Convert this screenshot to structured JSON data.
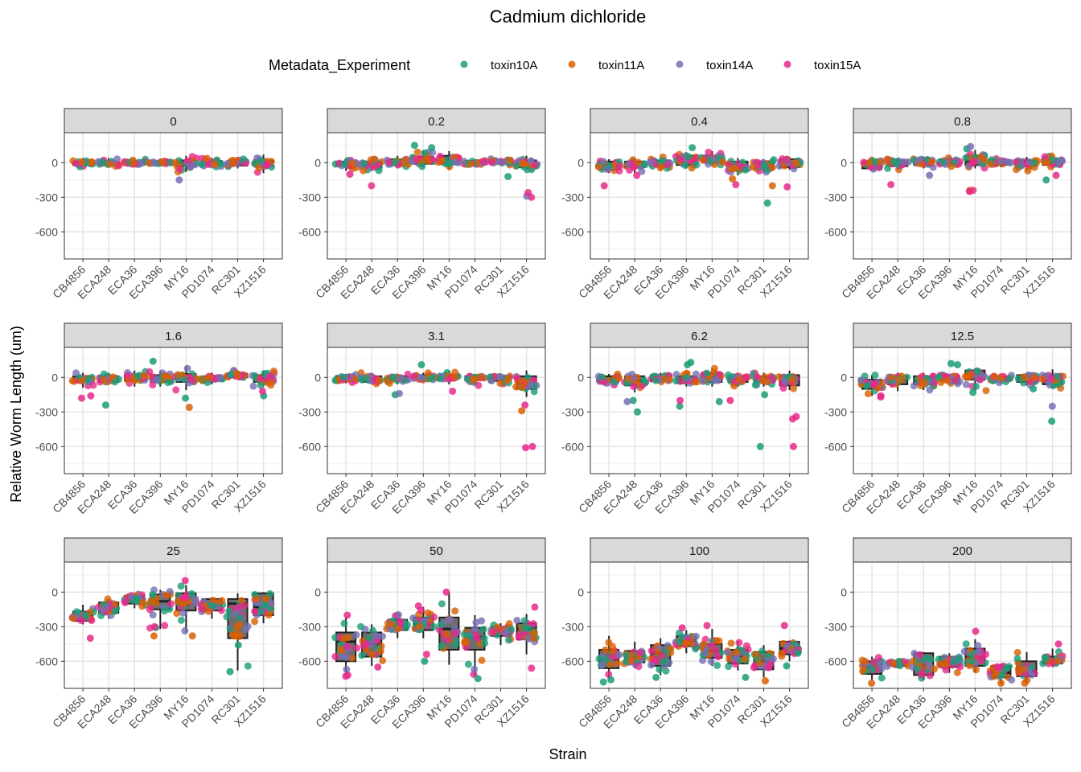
{
  "chart_data": {
    "type": "box",
    "title": "Cadmium dichloride",
    "xlabel": "Strain",
    "ylabel": "Relative Worm Length (um)",
    "ylim": [
      -835,
      260
    ],
    "yticks": [
      0,
      -300,
      -600
    ],
    "ytick_labels": [
      "0",
      "-300",
      "-600"
    ],
    "grid": true,
    "legend": {
      "title": "Metadata_Experiment",
      "position": "top",
      "entries": [
        {
          "name": "toxin10A",
          "color": "#1B9E77"
        },
        {
          "name": "toxin11A",
          "color": "#D95F02"
        },
        {
          "name": "toxin14A",
          "color": "#7570B3"
        },
        {
          "name": "toxin15A",
          "color": "#E7298A"
        }
      ]
    },
    "categories": [
      "CB4856",
      "ECA248",
      "ECA36",
      "ECA396",
      "MY16",
      "PD1074",
      "RC301",
      "XZ1516"
    ],
    "facets": [
      {
        "label": "0",
        "boxes": [
          [
            -20,
            10,
            0,
            -40,
            40
          ],
          [
            -20,
            10,
            0,
            -40,
            40
          ],
          [
            -20,
            10,
            0,
            -40,
            40
          ],
          [
            -5,
            5,
            0,
            -10,
            15
          ],
          [
            -30,
            20,
            0,
            -80,
            60
          ],
          [
            -20,
            15,
            0,
            -40,
            40
          ],
          [
            -25,
            15,
            0,
            -50,
            50
          ],
          [
            -30,
            20,
            0,
            -90,
            70
          ]
        ],
        "outliers": [
          [
            4,
            2,
            -150
          ]
        ]
      },
      {
        "label": "0.2",
        "boxes": [
          [
            -30,
            10,
            -10,
            -70,
            30
          ],
          [
            -40,
            10,
            -20,
            -70,
            30
          ],
          [
            -20,
            30,
            10,
            -50,
            60
          ],
          [
            -10,
            50,
            20,
            -40,
            100
          ],
          [
            -10,
            60,
            30,
            -60,
            100
          ],
          [
            -15,
            15,
            0,
            -40,
            30
          ],
          [
            -5,
            25,
            10,
            -20,
            40
          ],
          [
            -40,
            20,
            0,
            -60,
            60
          ]
        ],
        "outliers": [
          [
            0,
            3,
            -100
          ],
          [
            1,
            3,
            -200
          ],
          [
            3,
            0,
            150
          ],
          [
            3,
            0,
            130
          ],
          [
            6,
            0,
            -120
          ],
          [
            7,
            3,
            -300
          ],
          [
            7,
            2,
            -290
          ],
          [
            7,
            3,
            -260
          ]
        ]
      },
      {
        "label": "0.4",
        "boxes": [
          [
            -60,
            10,
            -20,
            -90,
            30
          ],
          [
            -40,
            10,
            -20,
            -90,
            40
          ],
          [
            -30,
            20,
            0,
            -60,
            50
          ],
          [
            -20,
            60,
            20,
            -50,
            90
          ],
          [
            0,
            60,
            30,
            -30,
            100
          ],
          [
            -70,
            10,
            -30,
            -110,
            40
          ],
          [
            -50,
            10,
            -20,
            -90,
            30
          ],
          [
            -40,
            30,
            0,
            -60,
            50
          ]
        ],
        "outliers": [
          [
            0,
            3,
            -200
          ],
          [
            1,
            3,
            -110
          ],
          [
            3,
            0,
            130
          ],
          [
            5,
            3,
            -190
          ],
          [
            5,
            1,
            -140
          ],
          [
            6,
            0,
            -350
          ],
          [
            6,
            1,
            -200
          ],
          [
            7,
            3,
            -210
          ]
        ]
      },
      {
        "label": "0.8",
        "boxes": [
          [
            -50,
            10,
            -20,
            -70,
            30
          ],
          [
            -30,
            20,
            0,
            -60,
            40
          ],
          [
            -20,
            30,
            0,
            -50,
            50
          ],
          [
            -20,
            30,
            10,
            -40,
            50
          ],
          [
            -20,
            60,
            10,
            -50,
            110
          ],
          [
            -20,
            20,
            0,
            -40,
            40
          ],
          [
            -30,
            20,
            0,
            -70,
            50
          ],
          [
            -20,
            30,
            10,
            -50,
            60
          ]
        ],
        "outliers": [
          [
            1,
            3,
            -190
          ],
          [
            2,
            2,
            -110
          ],
          [
            4,
            3,
            -240
          ],
          [
            4,
            1,
            -240
          ],
          [
            4,
            3,
            -250
          ],
          [
            4,
            0,
            120
          ],
          [
            4,
            2,
            140
          ],
          [
            6,
            1,
            -70
          ],
          [
            7,
            3,
            -110
          ],
          [
            7,
            0,
            -150
          ]
        ]
      },
      {
        "label": "1.6",
        "boxes": [
          [
            -40,
            10,
            -20,
            -90,
            40
          ],
          [
            -40,
            10,
            -10,
            -60,
            40
          ],
          [
            -30,
            20,
            0,
            -80,
            60
          ],
          [
            -40,
            20,
            -10,
            -80,
            60
          ],
          [
            -40,
            30,
            -10,
            -110,
            100
          ],
          [
            -30,
            10,
            -10,
            -60,
            40
          ],
          [
            0,
            30,
            10,
            -20,
            60
          ],
          [
            -40,
            20,
            -10,
            -80,
            60
          ]
        ],
        "outliers": [
          [
            0,
            3,
            -180
          ],
          [
            0,
            3,
            -160
          ],
          [
            1,
            0,
            -240
          ],
          [
            3,
            0,
            140
          ],
          [
            4,
            0,
            -180
          ],
          [
            4,
            1,
            -260
          ],
          [
            7,
            0,
            -160
          ],
          [
            7,
            3,
            -120
          ]
        ]
      },
      {
        "label": "3.1",
        "boxes": [
          [
            -30,
            10,
            -10,
            -50,
            30
          ],
          [
            -40,
            10,
            -20,
            -60,
            40
          ],
          [
            -30,
            10,
            -10,
            -60,
            30
          ],
          [
            -10,
            20,
            0,
            -40,
            40
          ],
          [
            -10,
            20,
            0,
            -60,
            60
          ],
          [
            -20,
            10,
            -10,
            -70,
            30
          ],
          [
            -30,
            10,
            -10,
            -60,
            30
          ],
          [
            -100,
            10,
            -50,
            -170,
            60
          ]
        ],
        "outliers": [
          [
            2,
            0,
            -150
          ],
          [
            2,
            2,
            -140
          ],
          [
            3,
            0,
            110
          ],
          [
            4,
            3,
            -120
          ],
          [
            7,
            3,
            -240
          ],
          [
            7,
            1,
            -290
          ],
          [
            7,
            3,
            -600
          ],
          [
            7,
            3,
            -610
          ]
        ]
      },
      {
        "label": "6.2",
        "boxes": [
          [
            -40,
            10,
            -20,
            -70,
            30
          ],
          [
            -70,
            10,
            -30,
            -130,
            30
          ],
          [
            -30,
            20,
            0,
            -50,
            40
          ],
          [
            -50,
            10,
            -20,
            -80,
            40
          ],
          [
            -40,
            40,
            10,
            -80,
            80
          ],
          [
            -40,
            10,
            -10,
            -80,
            40
          ],
          [
            -40,
            10,
            -10,
            -80,
            40
          ],
          [
            -70,
            20,
            -40,
            -110,
            60
          ]
        ],
        "outliers": [
          [
            1,
            0,
            -300
          ],
          [
            1,
            0,
            -200
          ],
          [
            1,
            2,
            -210
          ],
          [
            3,
            0,
            -250
          ],
          [
            3,
            0,
            110
          ],
          [
            3,
            0,
            130
          ],
          [
            3,
            3,
            -200
          ],
          [
            4,
            0,
            -210
          ],
          [
            5,
            3,
            -200
          ],
          [
            6,
            0,
            -150
          ],
          [
            7,
            3,
            -340
          ],
          [
            7,
            3,
            -360
          ],
          [
            6,
            0,
            -600
          ],
          [
            7,
            3,
            -600
          ]
        ]
      },
      {
        "label": "12.5",
        "boxes": [
          [
            -100,
            -20,
            -60,
            -160,
            20
          ],
          [
            -60,
            10,
            -20,
            -120,
            40
          ],
          [
            -60,
            10,
            -30,
            -110,
            40
          ],
          [
            -30,
            10,
            -10,
            -60,
            30
          ],
          [
            -20,
            60,
            0,
            -120,
            80
          ],
          [
            -30,
            10,
            -10,
            -60,
            30
          ],
          [
            -40,
            20,
            -10,
            -70,
            30
          ],
          [
            -60,
            20,
            -10,
            -100,
            70
          ]
        ],
        "outliers": [
          [
            0,
            3,
            -160
          ],
          [
            0,
            3,
            -170
          ],
          [
            3,
            0,
            120
          ],
          [
            3,
            0,
            110
          ],
          [
            4,
            0,
            -130
          ],
          [
            6,
            0,
            -100
          ],
          [
            7,
            2,
            -250
          ],
          [
            7,
            0,
            -380
          ]
        ]
      },
      {
        "label": "25",
        "boxes": [
          [
            -250,
            -170,
            -200,
            -280,
            -110
          ],
          [
            -180,
            -90,
            -130,
            -230,
            -60
          ],
          [
            -100,
            -30,
            -60,
            -140,
            -10
          ],
          [
            -150,
            -20,
            -80,
            -320,
            20
          ],
          [
            -160,
            -10,
            -110,
            -350,
            60
          ],
          [
            -160,
            -60,
            -110,
            -230,
            -50
          ],
          [
            -400,
            -60,
            -100,
            -680,
            -10
          ],
          [
            -200,
            -10,
            -130,
            -270,
            0
          ]
        ],
        "outliers": [
          [
            0,
            3,
            -400
          ],
          [
            3,
            3,
            -300
          ],
          [
            3,
            1,
            -380
          ],
          [
            4,
            3,
            100
          ],
          [
            4,
            1,
            -380
          ],
          [
            6,
            0,
            -690
          ],
          [
            6,
            0,
            -460
          ],
          [
            6,
            1,
            -380
          ]
        ]
      },
      {
        "label": "50",
        "boxes": [
          [
            -600,
            -350,
            -430,
            -700,
            -220
          ],
          [
            -560,
            -350,
            -450,
            -640,
            -280
          ],
          [
            -330,
            -240,
            -300,
            -400,
            -170
          ],
          [
            -330,
            -220,
            -280,
            -400,
            -130
          ],
          [
            -500,
            -220,
            -320,
            -630,
            0
          ],
          [
            -500,
            -310,
            -390,
            -730,
            -200
          ],
          [
            -380,
            -300,
            -330,
            -460,
            -270
          ],
          [
            -410,
            -270,
            -320,
            -540,
            -190
          ]
        ],
        "outliers": [
          [
            0,
            3,
            -720
          ],
          [
            0,
            3,
            -730
          ],
          [
            0,
            3,
            -200
          ],
          [
            1,
            3,
            -650
          ],
          [
            3,
            3,
            -120
          ],
          [
            3,
            3,
            -540
          ],
          [
            3,
            0,
            -600
          ],
          [
            4,
            3,
            0
          ],
          [
            5,
            0,
            -750
          ],
          [
            7,
            3,
            -130
          ],
          [
            7,
            3,
            -660
          ]
        ]
      },
      {
        "label": "100",
        "boxes": [
          [
            -660,
            -500,
            -590,
            -750,
            -380
          ],
          [
            -610,
            -510,
            -560,
            -660,
            -430
          ],
          [
            -640,
            -460,
            -530,
            -720,
            -400
          ],
          [
            -470,
            -380,
            -420,
            -530,
            -330
          ],
          [
            -570,
            -450,
            -510,
            -640,
            -320
          ],
          [
            -620,
            -500,
            -560,
            -680,
            -420
          ],
          [
            -670,
            -520,
            -600,
            -740,
            -460
          ],
          [
            -540,
            -430,
            -490,
            -600,
            -420
          ]
        ],
        "outliers": [
          [
            0,
            0,
            -760
          ],
          [
            0,
            0,
            -780
          ],
          [
            2,
            0,
            -740
          ],
          [
            3,
            3,
            -310
          ],
          [
            4,
            3,
            -290
          ],
          [
            5,
            0,
            -740
          ],
          [
            6,
            1,
            -770
          ],
          [
            7,
            3,
            -290
          ],
          [
            7,
            0,
            -640
          ]
        ]
      },
      {
        "label": "200",
        "boxes": [
          [
            -710,
            -600,
            -650,
            -760,
            -560
          ],
          [
            -640,
            -600,
            -610,
            -660,
            -590
          ],
          [
            -720,
            -530,
            -640,
            -760,
            -520
          ],
          [
            -650,
            -560,
            -610,
            -700,
            -530
          ],
          [
            -640,
            -490,
            -570,
            -700,
            -410
          ],
          [
            -740,
            -640,
            -700,
            -800,
            -620
          ],
          [
            -730,
            -600,
            -690,
            -790,
            -520
          ],
          [
            -620,
            -560,
            -590,
            -650,
            -490
          ]
        ],
        "outliers": [
          [
            0,
            1,
            -790
          ],
          [
            4,
            3,
            -340
          ],
          [
            5,
            1,
            -790
          ],
          [
            6,
            1,
            -790
          ],
          [
            7,
            3,
            -450
          ]
        ]
      }
    ]
  }
}
